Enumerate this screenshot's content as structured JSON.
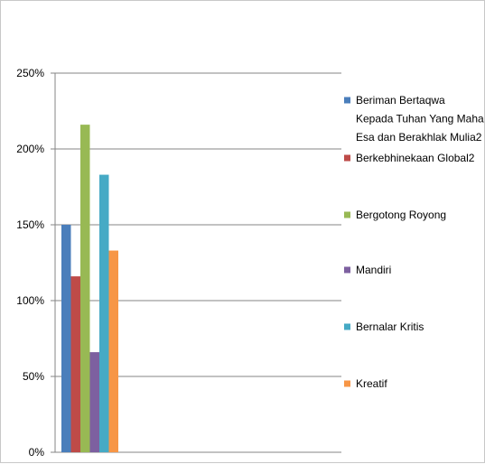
{
  "chart_data": {
    "type": "bar",
    "title": "",
    "xlabel": "",
    "ylabel": "",
    "ylim": [
      0,
      2.5
    ],
    "y_ticks": [
      0,
      0.5,
      1.0,
      1.5,
      2.0,
      2.5
    ],
    "y_tick_labels": [
      "0%",
      "50%",
      "100%",
      "150%",
      "200%",
      "250%"
    ],
    "grid": true,
    "legend_position": "right",
    "categories": [
      ""
    ],
    "series": [
      {
        "name": "Beriman Bertaqwa Kepada Tuhan Yang Maha Esa dan Berakhlak Mulia2",
        "values": [
          1.5
        ],
        "color": "#4a7ebb"
      },
      {
        "name": "Berkebhinekaan Global2",
        "values": [
          1.16
        ],
        "color": "#be4b48"
      },
      {
        "name": "Bergotong Royong",
        "values": [
          2.16
        ],
        "color": "#98b954"
      },
      {
        "name": "Mandiri",
        "values": [
          0.66
        ],
        "color": "#7d60a0"
      },
      {
        "name": "Bernalar Kritis",
        "values": [
          1.83
        ],
        "color": "#46aac5"
      },
      {
        "name": "Kreatif",
        "values": [
          1.33
        ],
        "color": "#f79646"
      }
    ],
    "legend_lines": [
      [
        "Beriman Bertaqwa",
        "Kepada Tuhan Yang Maha",
        "Esa dan Berakhlak Mulia2"
      ],
      [
        "Berkebhinekaan Global2"
      ],
      [
        "Bergotong Royong"
      ],
      [
        "Mandiri"
      ],
      [
        "Bernalar Kritis"
      ],
      [
        "Kreatif"
      ]
    ]
  }
}
